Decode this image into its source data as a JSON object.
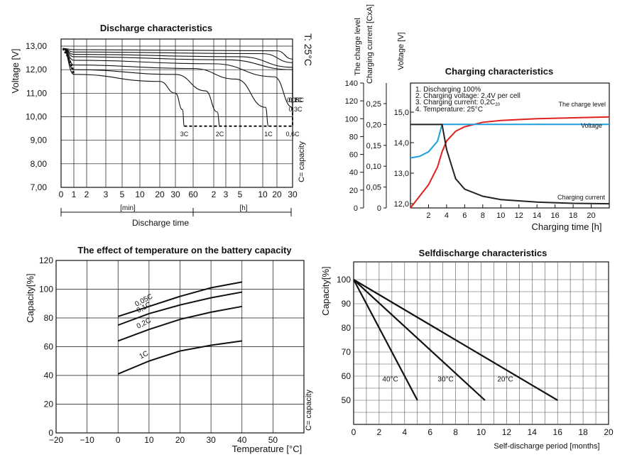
{
  "chart_data": [
    {
      "id": "discharge",
      "type": "line",
      "title": "Discharge characteristics",
      "ylabel": "Voltage  [V]",
      "xlabel": "Discharge time",
      "side_label": "T: 25°C",
      "note": "C= capacity",
      "segment_labels": [
        "[min]",
        "[h]"
      ],
      "x_ticks": [
        "0",
        "1",
        "2",
        "3",
        "5",
        "10",
        "20",
        "30",
        "60",
        "2",
        "3",
        "5",
        "10",
        "20",
        "30"
      ],
      "y_ticks": [
        "13,00",
        "12,00",
        "11,00",
        "10,00",
        "9,00",
        "8,00",
        "7,00"
      ],
      "ylim": [
        7,
        13
      ],
      "series": [
        {
          "name": "3C",
          "points": [
            [
              0.15,
              12.9
            ],
            [
              1.0,
              11.8
            ],
            [
              6.0,
              11.5
            ],
            [
              7.0,
              11.0
            ],
            [
              7.4,
              10.3
            ],
            [
              7.5,
              9.6
            ]
          ]
        },
        {
          "name": "2C",
          "points": [
            [
              0.15,
              12.9
            ],
            [
              1.0,
              12.0
            ],
            [
              7.0,
              11.8
            ],
            [
              8.6,
              11.1
            ],
            [
              9.3,
              10.2
            ],
            [
              9.5,
              9.6
            ]
          ]
        },
        {
          "name": "1C",
          "points": [
            [
              0.15,
              12.9
            ],
            [
              1.0,
              12.2
            ],
            [
              8.0,
              12.05
            ],
            [
              10.7,
              11.6
            ],
            [
              12.2,
              10.4
            ],
            [
              12.4,
              9.6
            ]
          ]
        },
        {
          "name": "0,6C",
          "points": [
            [
              0.15,
              12.9
            ],
            [
              1.0,
              12.4
            ],
            [
              9.0,
              12.25
            ],
            [
              12.8,
              11.7
            ],
            [
              14.0,
              10.4
            ],
            [
              14.1,
              9.6
            ]
          ]
        },
        {
          "name": "0,3C",
          "points": [
            [
              0.15,
              12.9
            ],
            [
              1.0,
              12.55
            ],
            [
              10.0,
              12.42
            ],
            [
              14.0,
              12.0
            ],
            [
              15.3,
              11.0
            ],
            [
              15.6,
              10.1
            ]
          ]
        },
        {
          "name": "0,2C",
          "points": [
            [
              0.15,
              12.9
            ],
            [
              1.0,
              12.65
            ],
            [
              11.0,
              12.55
            ],
            [
              15.3,
              12.1
            ],
            [
              16.6,
              11.2
            ],
            [
              16.9,
              10.5
            ]
          ]
        },
        {
          "name": "0,1C",
          "points": [
            [
              0.15,
              12.9
            ],
            [
              1.0,
              12.75
            ],
            [
              12.0,
              12.68
            ],
            [
              16.8,
              12.3
            ],
            [
              18.0,
              11.3
            ],
            [
              18.3,
              10.5
            ]
          ]
        },
        {
          "name": "0,05C",
          "points": [
            [
              0.15,
              12.9
            ],
            [
              1.0,
              12.85
            ],
            [
              13.0,
              12.8
            ],
            [
              18.2,
              12.45
            ],
            [
              19.4,
              11.3
            ],
            [
              19.7,
              10.5
            ]
          ]
        }
      ],
      "end_voltage_curve": [
        [
          7.5,
          9.6
        ],
        [
          14.1,
          9.6
        ],
        [
          15.6,
          10.1
        ],
        [
          16.9,
          10.5
        ],
        [
          19.7,
          10.5
        ]
      ],
      "start_curve": [
        [
          0.15,
          12.9
        ],
        [
          0.5,
          12.6
        ],
        [
          0.8,
          12.2
        ],
        [
          1.0,
          11.8
        ]
      ]
    },
    {
      "id": "charging",
      "type": "line",
      "title": "Charging characteristics",
      "xlabel": "Charging time [h]",
      "left_axis_title": "The charge level",
      "mid_axis_title": "Charging current [CxA]",
      "right_axis_title": "Voltage [V]",
      "notes": [
        "1. Discharging 100%",
        "2. Charging voltage: 2,4V per cell",
        "3. Charging current: 0,2C",
        "4. Temperature: 25°C"
      ],
      "note_sub": "20",
      "level_ticks": [
        "140",
        "120",
        "100",
        "80",
        "60",
        "40",
        "20",
        "0"
      ],
      "current_ticks": [
        "0,25",
        "0,20",
        "0,15",
        "0,10",
        "0,05",
        "0"
      ],
      "voltage_ticks": [
        "15,0",
        "14,0",
        "13,0",
        "12,0"
      ],
      "x_ticks": [
        "2",
        "4",
        "6",
        "8",
        "10",
        "12",
        "14",
        "16",
        "18",
        "20"
      ],
      "xlim": [
        0,
        22
      ],
      "series": [
        {
          "name": "The charge level",
          "color": "#e0201c",
          "axis": "level",
          "values": [
            [
              0,
              0
            ],
            [
              1,
              13
            ],
            [
              2,
              26
            ],
            [
              3,
              46
            ],
            [
              3.5,
              63
            ],
            [
              4,
              75
            ],
            [
              5,
              86
            ],
            [
              6,
              91
            ],
            [
              8,
              96
            ],
            [
              10,
              98
            ],
            [
              14,
              100
            ],
            [
              18,
              101
            ],
            [
              22,
              102
            ]
          ]
        },
        {
          "name": "Voltage",
          "color": "#1aa0e0",
          "axis": "voltage",
          "values": [
            [
              0,
              13.5
            ],
            [
              1,
              13.55
            ],
            [
              2,
              13.7
            ],
            [
              3,
              14.05
            ],
            [
              3.5,
              14.6
            ],
            [
              4,
              14.6
            ],
            [
              22,
              14.6
            ]
          ]
        },
        {
          "name": "Charging current",
          "color": "#222222",
          "axis": "current",
          "values": [
            [
              0,
              0.2
            ],
            [
              3.5,
              0.2
            ],
            [
              4,
              0.14
            ],
            [
              5,
              0.07
            ],
            [
              6,
              0.045
            ],
            [
              8,
              0.028
            ],
            [
              10,
              0.02
            ],
            [
              14,
              0.014
            ],
            [
              18,
              0.011
            ],
            [
              22,
              0.01
            ]
          ]
        }
      ]
    },
    {
      "id": "temperature",
      "type": "line",
      "title": "The effect of temperature on the battery capacity",
      "ylabel": "Capacity[%]",
      "xlabel": "Temperature [°C]",
      "note": "C= capacity",
      "x_ticks": [
        "−20",
        "−10",
        "0",
        "10",
        "20",
        "30",
        "40",
        "50"
      ],
      "y_ticks": [
        "120",
        "100",
        "80",
        "60",
        "40",
        "20",
        "0"
      ],
      "xlim": [
        -20,
        60
      ],
      "ylim": [
        0,
        120
      ],
      "series": [
        {
          "name": "0,05C",
          "values": [
            [
              0,
              81
            ],
            [
              10,
              88
            ],
            [
              20,
              95
            ],
            [
              30,
              101
            ],
            [
              40,
              105
            ]
          ]
        },
        {
          "name": "0,1C",
          "values": [
            [
              0,
              75
            ],
            [
              10,
              83
            ],
            [
              20,
              89
            ],
            [
              30,
              94
            ],
            [
              40,
              98
            ]
          ]
        },
        {
          "name": "0,2C",
          "values": [
            [
              0,
              64
            ],
            [
              10,
              72
            ],
            [
              20,
              79
            ],
            [
              30,
              84
            ],
            [
              40,
              88
            ]
          ]
        },
        {
          "name": "1C",
          "values": [
            [
              0,
              41
            ],
            [
              10,
              50
            ],
            [
              20,
              57
            ],
            [
              30,
              61
            ],
            [
              40,
              64
            ]
          ]
        }
      ]
    },
    {
      "id": "selfdischarge",
      "type": "line",
      "title": "Selfdischarge characteristics",
      "ylabel": "Capacity[%]",
      "xlabel": "Self-discharge period [months]",
      "x_ticks": [
        "0",
        "2",
        "4",
        "6",
        "8",
        "10",
        "12",
        "14",
        "16",
        "18",
        "20"
      ],
      "y_ticks": [
        "100",
        "90",
        "80",
        "70",
        "60",
        "50"
      ],
      "xlim": [
        0,
        20
      ],
      "ylim": [
        40,
        105
      ],
      "series": [
        {
          "name": "40°C",
          "values": [
            [
              0,
              100
            ],
            [
              5,
              50
            ]
          ]
        },
        {
          "name": "30°C",
          "values": [
            [
              0,
              100
            ],
            [
              10.3,
              50
            ]
          ]
        },
        {
          "name": "20°C",
          "values": [
            [
              0,
              100
            ],
            [
              16,
              50
            ]
          ]
        }
      ]
    }
  ]
}
